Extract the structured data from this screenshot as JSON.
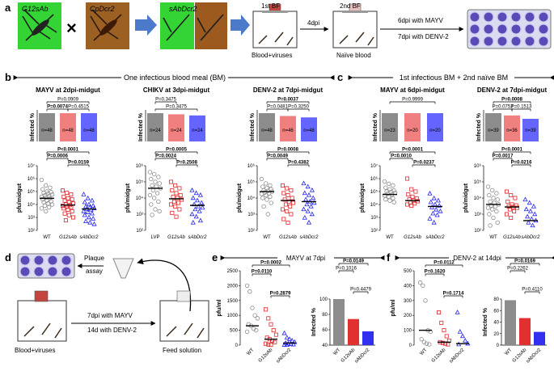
{
  "colors": {
    "wt": "#8c8c8c",
    "g12": "#f08080",
    "g12pt": "#e0262a",
    "sab": "#6464ff",
    "sabpt": "#2222ee",
    "lvp": "#8c8c8c"
  },
  "panel_labels": {
    "a": "a",
    "b": "b",
    "c": "c",
    "d": "d",
    "e": "e",
    "f": "f"
  },
  "panel_a": {
    "mosq1": "G12sAb",
    "cross": "×",
    "mosq2": "CpDcr2",
    "mosq3": "sAbDcr2",
    "bf1": "1st BF",
    "bf1_sub": "Blood+viruses",
    "dpi": "4dpi",
    "bf2": "2nd BF",
    "bf2_sub": "Naïve blood",
    "line1": "6dpi with MAYV",
    "line2": "7dpi with DENV-2"
  },
  "panel_b": {
    "header": "One infectious blood meal (BM)"
  },
  "panel_c": {
    "header": "1st infectious BM + 2nd naïve BM"
  },
  "panel_d": {
    "plaque1": "Plaque",
    "plaque2": "assay",
    "line1": "7dpi with MAYV",
    "line2": "14d with DENV-2",
    "left_label": "Blood+viruses",
    "right_label": "Feed solution"
  },
  "ylabels": {
    "infected": "Infected %",
    "pfu_midgut": "pfu/midgut",
    "pfu_ml": "pfu/ml"
  },
  "chart_data": [
    {
      "type": "scatter",
      "title": "MAYV at 2dpi-midgut",
      "panel": "b",
      "categories": [
        "WT",
        "G12sAb",
        "sAbDcr2"
      ],
      "infected_percent": [
        100,
        100,
        100
      ],
      "n_labels": [
        "n=48",
        "n=48",
        "n=48"
      ],
      "infected_pvalues": [
        "P=0.0074",
        "P=0.0909",
        "P=0.4515"
      ],
      "ylabel": "pfu/midgut",
      "ylim": [
        100,
        10000000
      ],
      "yscale": "log",
      "yticks": [
        "10²",
        "10³",
        "10⁴",
        "10⁵",
        "10⁶",
        "10⁷"
      ],
      "medians": [
        30000,
        9000,
        4500
      ],
      "pvalues": [
        "P<0.0001",
        "P=0.0006",
        "P=0.0159"
      ],
      "points": [
        [
          800000.0,
          300000.0,
          200000.0,
          150000.0,
          100000.0,
          90000.0,
          80000.0,
          70000.0,
          60000.0,
          50000.0,
          45000.0,
          40000.0,
          35000.0,
          30000.0,
          25000.0,
          20000.0,
          18000.0,
          15000.0,
          12000.0,
          10000.0,
          8000.0,
          6000.0,
          5000.0,
          3000.0
        ],
        [
          120000.0,
          80000.0,
          60000.0,
          40000.0,
          30000.0,
          25000.0,
          20000.0,
          15000.0,
          12000.0,
          10000.0,
          9000.0,
          8000.0,
          7000.0,
          6000.0,
          5000.0,
          4000.0,
          3000.0,
          2000.0,
          1500.0,
          1000.0,
          600
        ],
        [
          60000.0,
          30000.0,
          20000.0,
          15000.0,
          10000.0,
          8000.0,
          7000.0,
          6000.0,
          5000.0,
          4500.0,
          4000.0,
          3000.0,
          2500.0,
          2000.0,
          1500.0,
          1000.0,
          800,
          500,
          400,
          300
        ]
      ]
    },
    {
      "type": "scatter",
      "title": "CHIKV at 3dpi-midgut",
      "panel": "b",
      "categories": [
        "LVP",
        "G12sAb",
        "sAbDcr2"
      ],
      "infected_percent": [
        100,
        96,
        92
      ],
      "n_labels": [
        "n=24",
        "n=24",
        "n=24"
      ],
      "infected_pvalues": [
        "P=0.3475",
        "P=0.3475"
      ],
      "ylabel": "pfu/midgut",
      "ylim": [
        100,
        1000000
      ],
      "yscale": "log",
      "yticks": [
        "10²",
        "10³",
        "10⁴",
        "10⁵",
        "10⁶"
      ],
      "medians": [
        40000,
        9000,
        3500
      ],
      "pvalues": [
        "P=0.0005",
        "P=0.0024",
        "P=0.2508"
      ],
      "points": [
        [
          400000.0,
          300000.0,
          200000.0,
          150000.0,
          100000.0,
          80000.0,
          60000.0,
          50000.0,
          40000.0,
          30000.0,
          20000.0,
          15000.0,
          10000.0,
          6000.0,
          4000.0,
          2000.0,
          1500.0,
          900
        ],
        [
          100000.0,
          60000.0,
          40000.0,
          30000.0,
          20000.0,
          15000.0,
          12000.0,
          10000.0,
          8000.0,
          6000.0,
          5000.0,
          4000.0,
          3000.0,
          2000.0,
          1200.0,
          700
        ],
        [
          30000.0,
          20000.0,
          15000.0,
          10000.0,
          7000.0,
          5000.0,
          4000.0,
          3000.0,
          2500.0,
          2000.0,
          1500.0,
          1000.0,
          700,
          400,
          300
        ]
      ]
    },
    {
      "type": "scatter",
      "title": "DENV-2 at 7dpi-midgut",
      "panel": "b",
      "categories": [
        "WT",
        "G12sAb",
        "sAbDcr2"
      ],
      "infected_percent": [
        100,
        90,
        85
      ],
      "n_labels": [
        "n=48",
        "n=46",
        "n=48"
      ],
      "infected_pvalues": [
        "P=0.0037",
        "P=0.0481",
        "P=0.3250"
      ],
      "ylabel": "pfu/midgut",
      "ylim": [
        100,
        1000000
      ],
      "yscale": "log",
      "yticks": [
        "10²",
        "10³",
        "10⁴",
        "10⁵",
        "10⁶"
      ],
      "medians": [
        25000,
        7000,
        6000
      ],
      "pvalues": [
        "P=0.0008",
        "P=0.0049",
        "P=0.4382"
      ],
      "points": [
        [
          150000.0,
          80000.0,
          60000.0,
          50000.0,
          40000.0,
          35000.0,
          30000.0,
          28000.0,
          25000.0,
          22000.0,
          20000.0,
          18000.0,
          15000.0,
          12000.0,
          10000.0,
          8000.0,
          5000.0,
          3000.0,
          1000.0
        ],
        [
          60000.0,
          40000.0,
          30000.0,
          20000.0,
          15000.0,
          10000.0,
          8000.0,
          6000.0,
          5000.0,
          4000.0,
          3000.0,
          2000.0,
          1500.0,
          1000.0,
          500,
          300
        ],
        [
          80000.0,
          50000.0,
          30000.0,
          20000.0,
          15000.0,
          10000.0,
          8000.0,
          6000.0,
          5000.0,
          4000.0,
          3000.0,
          2000.0,
          1500.0,
          1000.0,
          600,
          300
        ]
      ]
    },
    {
      "type": "scatter",
      "title": "MAYV at 6dpi-midgut",
      "panel": "c",
      "categories": [
        "WT",
        "G12sAb",
        "sAbDcr2"
      ],
      "infected_percent": [
        100,
        100,
        100
      ],
      "n_labels": [
        "n=23",
        "n=20",
        "n=20"
      ],
      "infected_pvalues": [
        "P=0.9999"
      ],
      "ylabel": "pfu/midgut",
      "ylim": [
        100,
        10000000
      ],
      "yscale": "log",
      "yticks": [
        "10²",
        "10³",
        "10⁴",
        "10⁵",
        "10⁶",
        "10⁷"
      ],
      "medians": [
        60000,
        20000,
        7000
      ],
      "pvalues": [
        "P<0.0001",
        "P=0.0010",
        "P=0.0237"
      ],
      "points": [
        [
          600000.0,
          400000.0,
          300000.0,
          200000.0,
          150000.0,
          120000.0,
          100000.0,
          90000.0,
          80000.0,
          70000.0,
          60000.0,
          50000.0,
          40000.0,
          30000.0,
          25000.0,
          20000.0,
          15000.0
        ],
        [
          1000000.0,
          150000.0,
          100000.0,
          60000.0,
          40000.0,
          30000.0,
          25000.0,
          20000.0,
          18000.0,
          15000.0,
          12000.0,
          10000.0,
          8000.0
        ],
        [
          70000.0,
          30000.0,
          20000.0,
          15000.0,
          10000.0,
          8000.0,
          6000.0,
          4000.0,
          3000.0,
          2000.0,
          1500.0,
          800,
          400
        ]
      ]
    },
    {
      "type": "scatter",
      "title": "DENV-2 at 7dpi-midgut",
      "panel": "c",
      "categories": [
        "WT",
        "G12sAb",
        "sAbDcr2"
      ],
      "infected_percent": [
        100,
        92,
        80
      ],
      "n_labels": [
        "n=39",
        "n=36",
        "n=39"
      ],
      "infected_pvalues": [
        "P=0.0008",
        "P=0.0752",
        "P=0.1513"
      ],
      "ylabel": "pfu/midgut",
      "ylim": [
        100,
        1000000
      ],
      "yscale": "log",
      "yticks": [
        "10²",
        "10³",
        "10⁴",
        "10⁵",
        "10⁶"
      ],
      "medians": [
        4000,
        2800,
        400
      ],
      "pvalues": [
        "P<0.0001",
        "P=0.0017",
        "P=0.0216"
      ],
      "points": [
        [
          50000.0,
          30000.0,
          20000.0,
          15000.0,
          10000.0,
          8000.0,
          6000.0,
          5000.0,
          4000.0,
          3500.0,
          3000.0,
          2500.0,
          2000.0,
          1500.0,
          1000.0,
          600,
          300,
          200
        ],
        [
          25000.0,
          15000.0,
          10000.0,
          6000.0,
          4000.0,
          3500.0,
          3000.0,
          2800.0,
          2500.0,
          2000.0,
          1500.0,
          1000.0,
          600
        ],
        [
          8000.0,
          5000.0,
          3000.0,
          2000.0,
          1500.0,
          1000.0,
          700,
          500,
          400,
          300,
          200
        ]
      ]
    },
    {
      "type": "scatter",
      "title": "MAYV at 7dpi",
      "panel": "e",
      "categories": [
        "WT",
        "G12sAb",
        "sAbDcr2"
      ],
      "ylabel": "pfu/ml",
      "ylim": [
        0,
        2500
      ],
      "yscale": "linear",
      "yticks": [
        "0",
        "500",
        "1000",
        "1500",
        "2000",
        "2500"
      ],
      "medians": [
        650,
        200,
        70
      ],
      "pvalues": [
        "P=0.0002",
        "P=0.0110",
        "P=0.2879"
      ],
      "points": [
        [
          2000,
          1800,
          1250,
          1000,
          900,
          700,
          650,
          550,
          500,
          450
        ],
        [
          1200,
          900,
          700,
          500,
          350,
          250,
          200,
          150,
          100,
          50,
          20,
          10
        ],
        [
          400,
          250,
          200,
          150,
          100,
          70,
          50,
          30,
          20,
          10,
          5
        ]
      ],
      "bar": {
        "ylabel": "Infected %",
        "ylim": [
          40,
          100
        ],
        "yticks": [
          "40",
          "60",
          "80",
          "100"
        ],
        "values": [
          100,
          74,
          58
        ],
        "pvalues": [
          "P=0.0149",
          "P=0.1016",
          "P=0.4479"
        ]
      }
    },
    {
      "type": "scatter",
      "title": "DENV-2 at 14dpi",
      "panel": "f",
      "categories": [
        "WT",
        "G12sAb",
        "sAbDcr2"
      ],
      "ylabel": "pfu/ml",
      "ylim": [
        0,
        500
      ],
      "yscale": "linear",
      "yticks": [
        "0",
        "100",
        "200",
        "300",
        "400",
        "500"
      ],
      "medians": [
        100,
        20,
        10
      ],
      "pvalues": [
        "P=0.0112",
        "P=0.1620",
        "P=0.1714"
      ],
      "points": [
        [
          420,
          400,
          300,
          100,
          90,
          40,
          20,
          10,
          5
        ],
        [
          220,
          150,
          100,
          60,
          30,
          20,
          15,
          10,
          5
        ],
        [
          220,
          90,
          60,
          30,
          10,
          5
        ]
      ],
      "bar": {
        "ylabel": "Infected %",
        "ylim": [
          0,
          80
        ],
        "yticks": [
          "0",
          "20",
          "40",
          "60",
          "80"
        ],
        "values": [
          78,
          47,
          23
        ],
        "pvalues": [
          "P=0.0169",
          "P=0.2262",
          "P=0.4110"
        ]
      }
    }
  ]
}
